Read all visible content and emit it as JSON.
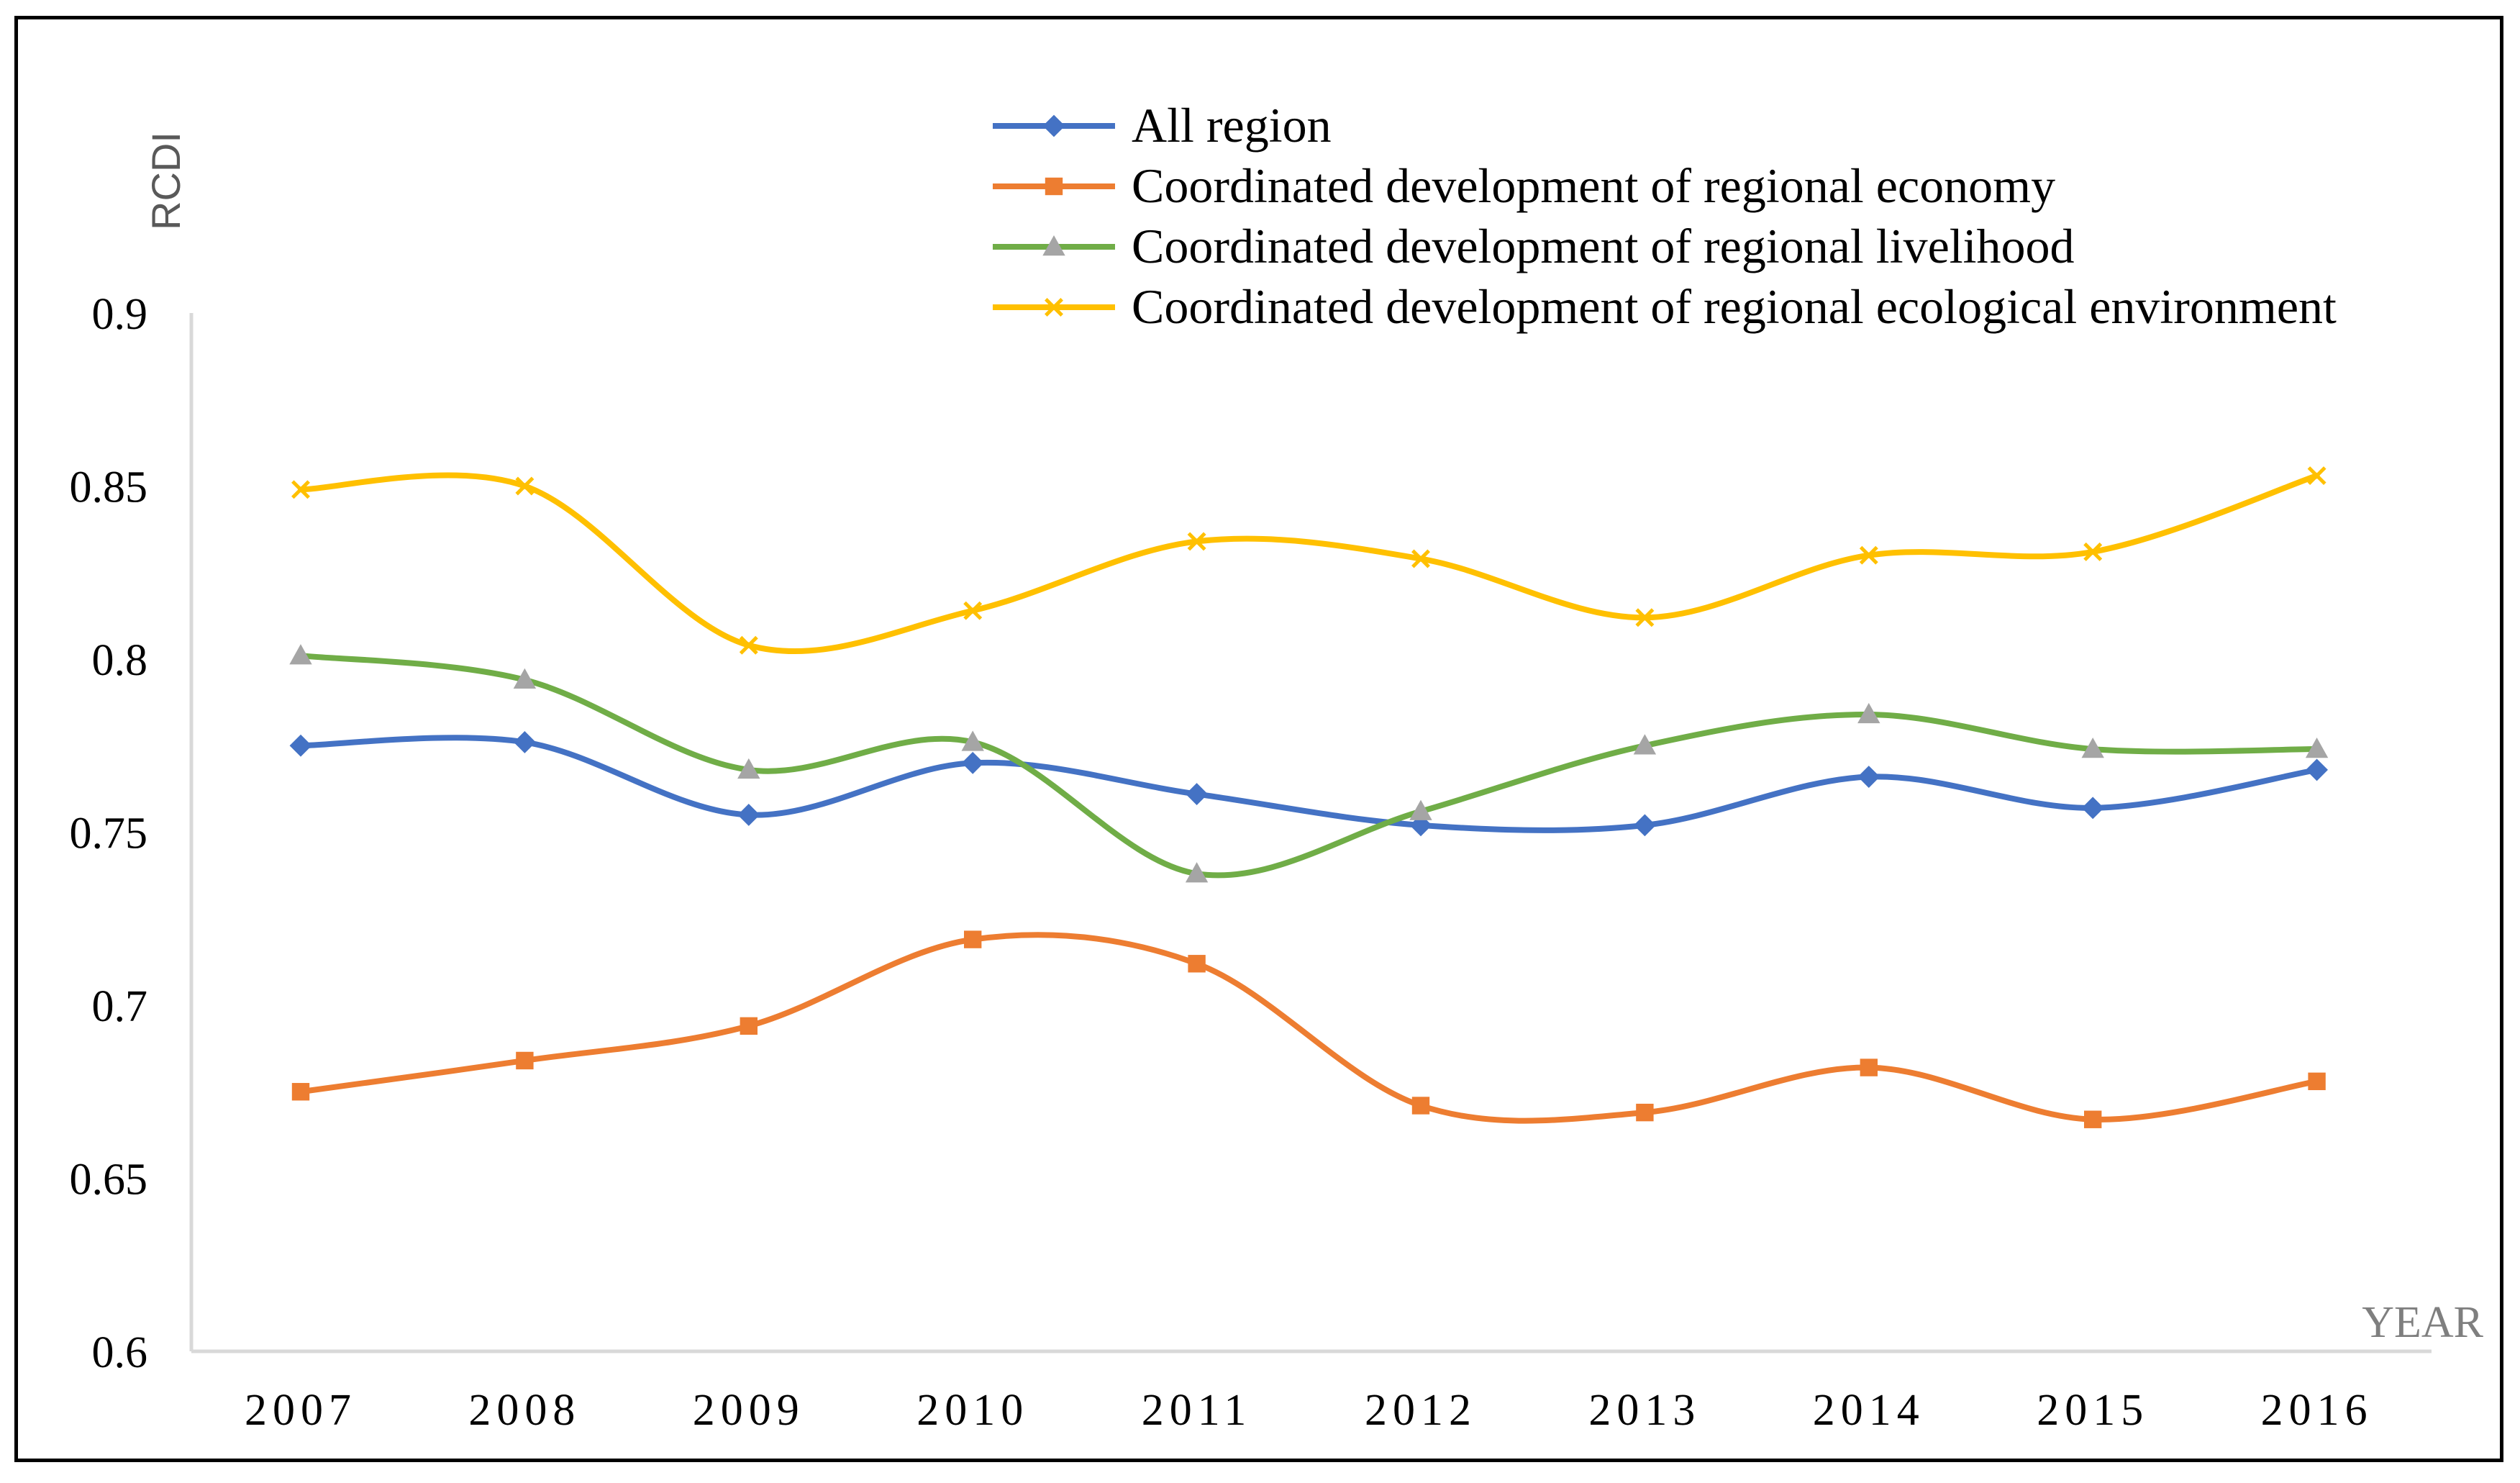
{
  "chart_data": {
    "type": "line",
    "title": "",
    "xlabel": "YEAR",
    "ylabel": "RCDI",
    "categories": [
      "2007",
      "2008",
      "2009",
      "2010",
      "2011",
      "2012",
      "2013",
      "2014",
      "2015",
      "2016"
    ],
    "ylim": [
      0.6,
      0.9
    ],
    "yticks": [
      "0.6",
      "0.65",
      "0.7",
      "0.75",
      "0.8",
      "0.85",
      "0.9"
    ],
    "grid": false,
    "legend_position": "top-right",
    "series": [
      {
        "name": "All region",
        "color": "#4472C4",
        "marker": "diamond",
        "values": [
          0.775,
          0.776,
          0.755,
          0.77,
          0.761,
          0.752,
          0.752,
          0.766,
          0.757,
          0.768
        ]
      },
      {
        "name": "Coordinated development of regional economy",
        "color": "#ED7D31",
        "marker": "square",
        "values": [
          0.675,
          0.684,
          0.694,
          0.719,
          0.712,
          0.671,
          0.669,
          0.682,
          0.667,
          0.678
        ]
      },
      {
        "name": "Coordinated development of regional livelihood",
        "color": "#70AD47",
        "marker": "triangle",
        "values": [
          0.801,
          0.794,
          0.768,
          0.776,
          0.738,
          0.756,
          0.775,
          0.784,
          0.774,
          0.774
        ]
      },
      {
        "name": "Coordinated development of regional ecological environment",
        "color": "#FFC000",
        "marker": "x",
        "values": [
          0.849,
          0.85,
          0.804,
          0.814,
          0.834,
          0.829,
          0.812,
          0.83,
          0.831,
          0.853
        ]
      }
    ]
  }
}
